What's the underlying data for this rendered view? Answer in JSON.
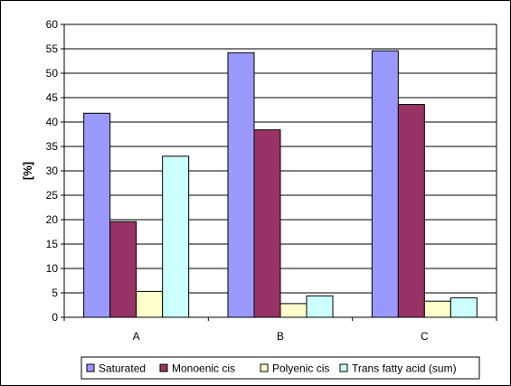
{
  "chart_data": {
    "type": "bar",
    "title": "",
    "xlabel": "",
    "ylabel": "[%]",
    "ylim": [
      0,
      60
    ],
    "ytick_step": 5,
    "grid": "horizontal",
    "legend_position": "bottom",
    "categories": [
      "A",
      "B",
      "C"
    ],
    "series": [
      {
        "name": "Saturated",
        "color": "#9999ff",
        "values": [
          41.8,
          54.2,
          54.6
        ]
      },
      {
        "name": "Monoenic cis",
        "color": "#993366",
        "values": [
          19.6,
          38.4,
          43.6
        ]
      },
      {
        "name": "Polyenic cis",
        "color": "#ffffcc",
        "values": [
          5.3,
          2.8,
          3.3
        ]
      },
      {
        "name": "Trans fatty acid (sum)",
        "color": "#ccffff",
        "values": [
          33.0,
          4.4,
          4.0
        ]
      }
    ]
  }
}
